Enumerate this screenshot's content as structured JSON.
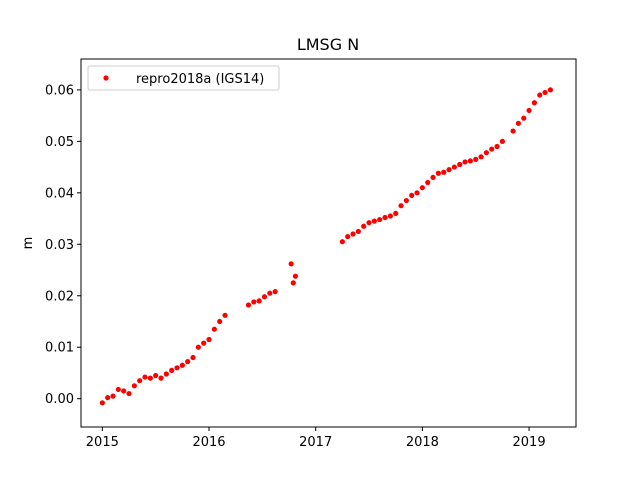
{
  "chart_data": {
    "type": "scatter",
    "title": "LMSG N",
    "xlabel": "",
    "ylabel": "m",
    "xlim": [
      2014.8,
      2019.44
    ],
    "ylim": [
      -0.0055,
      0.066
    ],
    "x_ticks": [
      2015,
      2016,
      2017,
      2018,
      2019
    ],
    "x_tick_labels": [
      "2015",
      "2016",
      "2017",
      "2018",
      "2019"
    ],
    "y_ticks": [
      0.0,
      0.01,
      0.02,
      0.03,
      0.04,
      0.05,
      0.06
    ],
    "y_tick_labels": [
      "0.00",
      "0.01",
      "0.02",
      "0.03",
      "0.04",
      "0.05",
      "0.06"
    ],
    "grid": false,
    "legend_position": "top-left",
    "marker_color": "#ff0000",
    "series": [
      {
        "name": "repro2018a (IGS14)",
        "points": [
          [
            2015.0,
            -0.0008
          ],
          [
            2015.05,
            0.0002
          ],
          [
            2015.1,
            0.0005
          ],
          [
            2015.15,
            0.0018
          ],
          [
            2015.2,
            0.0015
          ],
          [
            2015.25,
            0.001
          ],
          [
            2015.3,
            0.0025
          ],
          [
            2015.35,
            0.0035
          ],
          [
            2015.4,
            0.0042
          ],
          [
            2015.45,
            0.004
          ],
          [
            2015.5,
            0.0045
          ],
          [
            2015.55,
            0.004
          ],
          [
            2015.6,
            0.0048
          ],
          [
            2015.65,
            0.0055
          ],
          [
            2015.7,
            0.006
          ],
          [
            2015.75,
            0.0065
          ],
          [
            2015.8,
            0.0072
          ],
          [
            2015.85,
            0.008
          ],
          [
            2015.9,
            0.01
          ],
          [
            2015.95,
            0.0108
          ],
          [
            2016.0,
            0.0115
          ],
          [
            2016.05,
            0.0135
          ],
          [
            2016.1,
            0.015
          ],
          [
            2016.15,
            0.0162
          ],
          [
            2016.37,
            0.0182
          ],
          [
            2016.42,
            0.0188
          ],
          [
            2016.47,
            0.019
          ],
          [
            2016.52,
            0.0198
          ],
          [
            2016.57,
            0.0205
          ],
          [
            2016.62,
            0.0208
          ],
          [
            2016.77,
            0.0262
          ],
          [
            2016.79,
            0.0225
          ],
          [
            2016.81,
            0.0238
          ],
          [
            2017.25,
            0.0305
          ],
          [
            2017.3,
            0.0315
          ],
          [
            2017.35,
            0.032
          ],
          [
            2017.4,
            0.0325
          ],
          [
            2017.45,
            0.0335
          ],
          [
            2017.5,
            0.0342
          ],
          [
            2017.55,
            0.0345
          ],
          [
            2017.6,
            0.0348
          ],
          [
            2017.65,
            0.0352
          ],
          [
            2017.7,
            0.0355
          ],
          [
            2017.75,
            0.036
          ],
          [
            2017.8,
            0.0375
          ],
          [
            2017.85,
            0.0385
          ],
          [
            2017.9,
            0.0395
          ],
          [
            2017.95,
            0.04
          ],
          [
            2018.0,
            0.041
          ],
          [
            2018.05,
            0.042
          ],
          [
            2018.1,
            0.043
          ],
          [
            2018.15,
            0.0438
          ],
          [
            2018.2,
            0.044
          ],
          [
            2018.25,
            0.0445
          ],
          [
            2018.3,
            0.045
          ],
          [
            2018.35,
            0.0455
          ],
          [
            2018.4,
            0.046
          ],
          [
            2018.45,
            0.0462
          ],
          [
            2018.5,
            0.0465
          ],
          [
            2018.55,
            0.047
          ],
          [
            2018.6,
            0.0478
          ],
          [
            2018.65,
            0.0485
          ],
          [
            2018.7,
            0.049
          ],
          [
            2018.75,
            0.05
          ],
          [
            2018.85,
            0.052
          ],
          [
            2018.9,
            0.0535
          ],
          [
            2018.95,
            0.0545
          ],
          [
            2019.0,
            0.056
          ],
          [
            2019.05,
            0.0575
          ],
          [
            2019.1,
            0.059
          ],
          [
            2019.15,
            0.0595
          ],
          [
            2019.2,
            0.06
          ]
        ]
      }
    ]
  }
}
